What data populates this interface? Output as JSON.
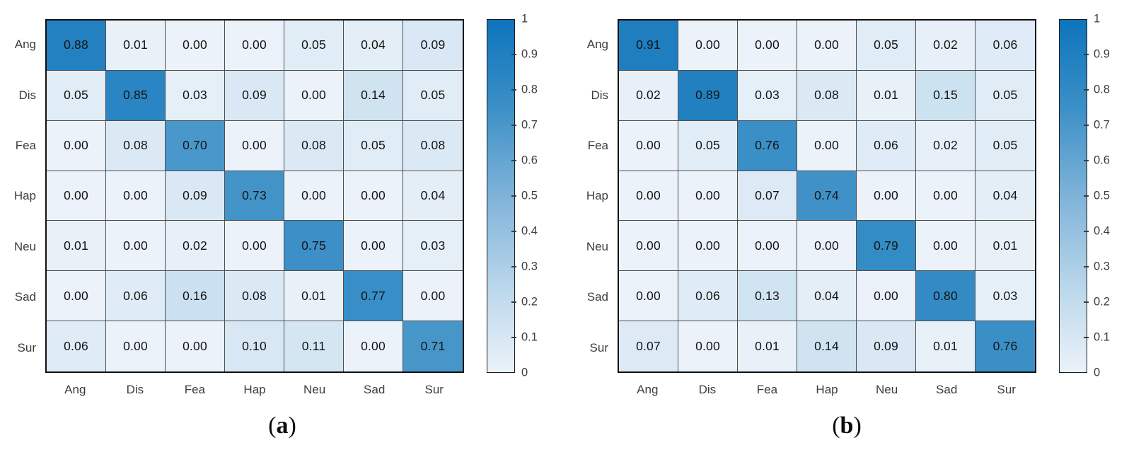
{
  "panels": [
    {
      "name": "a",
      "caption": {
        "open": "(",
        "letter": "a",
        "close": ")"
      }
    },
    {
      "name": "b",
      "caption": {
        "open": "(",
        "letter": "b",
        "close": ")"
      }
    }
  ],
  "colors": {
    "background": "#ffffff",
    "grid_line": "#4d4d4d",
    "grid_border": "#101010",
    "axis_text": "#3d3d3d",
    "cell_text": "#141414"
  },
  "chart_data": [
    {
      "type": "heatmap",
      "title": "",
      "xlabel": "",
      "ylabel": "",
      "x_labels": [
        "Ang",
        "Dis",
        "Fea",
        "Hap",
        "Neu",
        "Sad",
        "Sur"
      ],
      "y_labels": [
        "Ang",
        "Dis",
        "Fea",
        "Hap",
        "Neu",
        "Sad",
        "Sur"
      ],
      "values": [
        [
          0.88,
          0.01,
          0.0,
          0.0,
          0.05,
          0.04,
          0.09
        ],
        [
          0.05,
          0.85,
          0.03,
          0.09,
          0.0,
          0.14,
          0.05
        ],
        [
          0.0,
          0.08,
          0.7,
          0.0,
          0.08,
          0.05,
          0.08
        ],
        [
          0.0,
          0.0,
          0.09,
          0.73,
          0.0,
          0.0,
          0.04
        ],
        [
          0.01,
          0.0,
          0.02,
          0.0,
          0.75,
          0.0,
          0.03
        ],
        [
          0.0,
          0.06,
          0.16,
          0.08,
          0.01,
          0.77,
          0.0
        ],
        [
          0.06,
          0.0,
          0.0,
          0.1,
          0.11,
          0.0,
          0.71
        ]
      ],
      "value_decimals": 2,
      "colorbar": {
        "min": 0,
        "max": 1,
        "tick_labels_top_to_bottom": [
          "1",
          "0.9",
          "0.8",
          "0.7",
          "0.6",
          "0.5",
          "0.4",
          "0.3",
          "0.2",
          "0.1",
          "0"
        ]
      },
      "colormap_anchors": [
        {
          "t": 0.0,
          "color": "#ebf2f9"
        },
        {
          "t": 0.2,
          "color": "#c3dcee"
        },
        {
          "t": 0.5,
          "color": "#7fb3d9"
        },
        {
          "t": 0.75,
          "color": "#3c90c7"
        },
        {
          "t": 1.0,
          "color": "#0d74bc"
        }
      ],
      "legend": "colorbar-right",
      "grid": true
    },
    {
      "type": "heatmap",
      "title": "",
      "xlabel": "",
      "ylabel": "",
      "x_labels": [
        "Ang",
        "Dis",
        "Fea",
        "Hap",
        "Neu",
        "Sad",
        "Sur"
      ],
      "y_labels": [
        "Ang",
        "Dis",
        "Fea",
        "Hap",
        "Neu",
        "Sad",
        "Sur"
      ],
      "values": [
        [
          0.91,
          0.0,
          0.0,
          0.0,
          0.05,
          0.02,
          0.06
        ],
        [
          0.02,
          0.89,
          0.03,
          0.08,
          0.01,
          0.15,
          0.05
        ],
        [
          0.0,
          0.05,
          0.76,
          0.0,
          0.06,
          0.02,
          0.05
        ],
        [
          0.0,
          0.0,
          0.07,
          0.74,
          0.0,
          0.0,
          0.04
        ],
        [
          0.0,
          0.0,
          0.0,
          0.0,
          0.79,
          0.0,
          0.01
        ],
        [
          0.0,
          0.06,
          0.13,
          0.04,
          0.0,
          0.8,
          0.03
        ],
        [
          0.07,
          0.0,
          0.01,
          0.14,
          0.09,
          0.01,
          0.76
        ]
      ],
      "value_decimals": 2,
      "colorbar": {
        "min": 0,
        "max": 1,
        "tick_labels_top_to_bottom": [
          "1",
          "0.9",
          "0.8",
          "0.7",
          "0.6",
          "0.5",
          "0.4",
          "0.3",
          "0.2",
          "0.1",
          "0"
        ]
      },
      "colormap_anchors": [
        {
          "t": 0.0,
          "color": "#ebf2f9"
        },
        {
          "t": 0.2,
          "color": "#c3dcee"
        },
        {
          "t": 0.5,
          "color": "#7fb3d9"
        },
        {
          "t": 0.75,
          "color": "#3c90c7"
        },
        {
          "t": 1.0,
          "color": "#0d74bc"
        }
      ],
      "legend": "colorbar-right",
      "grid": true
    }
  ]
}
